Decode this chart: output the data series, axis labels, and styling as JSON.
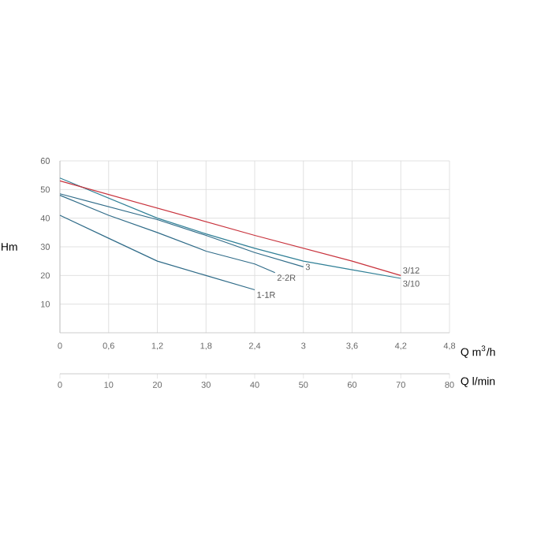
{
  "chart_data": {
    "type": "line",
    "xlabel": "Q m$^{3}$/h",
    "ylabel": "Hm",
    "x2label": "Q l/min",
    "xlim": [
      0,
      4.8
    ],
    "xticks": [
      0,
      {
        "value": 0.6,
        "label": "0,6"
      },
      {
        "value": 1.2,
        "label": "1,2"
      },
      {
        "value": 1.8,
        "label": "1,8"
      },
      {
        "value": 2.4,
        "label": "2,4"
      },
      3,
      {
        "value": 3.6,
        "label": "3,6"
      },
      {
        "value": 4.2,
        "label": "4,2"
      },
      {
        "value": 4.8,
        "label": "4,8"
      }
    ],
    "ylim": [
      0,
      60
    ],
    "yticks": [
      10,
      20,
      30,
      40,
      50,
      60
    ],
    "x2lim": [
      0,
      80
    ],
    "x2ticks": [
      0,
      10,
      20,
      30,
      40,
      50,
      60,
      70,
      80
    ],
    "grid": true,
    "marker": "none",
    "line_style": "solid",
    "series": [
      {
        "name": "1-1R",
        "color": "#2f6b88",
        "x": [
          0,
          0.6,
          1.2,
          1.8,
          2.4
        ],
        "values": [
          41,
          33,
          25,
          20,
          15
        ]
      },
      {
        "name": "2-2R",
        "color": "#2f6b88",
        "x": [
          0,
          0.6,
          1.2,
          1.8,
          2.4,
          2.65
        ],
        "values": [
          48,
          41,
          35,
          28.5,
          24,
          21
        ]
      },
      {
        "name": "3",
        "color": "#2f6b88",
        "x": [
          0,
          0.6,
          1.2,
          1.8,
          2.4,
          3.0
        ],
        "values": [
          48.5,
          44,
          39.5,
          34,
          28,
          23
        ]
      },
      {
        "name": "3/10",
        "color": "#2f7f96",
        "x": [
          0,
          0.6,
          1.2,
          1.8,
          2.4,
          3.0,
          3.6,
          4.2
        ],
        "values": [
          54,
          47,
          40,
          34.5,
          29.5,
          25,
          22,
          19
        ]
      },
      {
        "name": "3/12",
        "color": "#c8323c",
        "x": [
          0,
          1.2,
          2.4,
          3.6,
          4.2
        ],
        "values": [
          53,
          43.5,
          34,
          25,
          20
        ]
      }
    ]
  }
}
